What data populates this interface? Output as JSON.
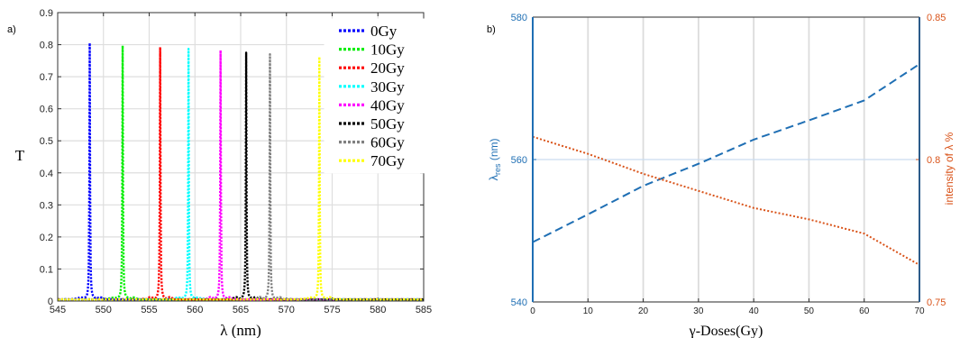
{
  "panels": {
    "a": {
      "label": "a)"
    },
    "b": {
      "label": "b)"
    }
  },
  "chart_data": [
    {
      "type": "line",
      "panel": "a)",
      "title": "",
      "xlabel": "λ (nm)",
      "ylabel": "T",
      "xlim": [
        545,
        585
      ],
      "ylim": [
        0,
        0.9
      ],
      "xticks": [
        "545",
        "550",
        "555",
        "560",
        "565",
        "570",
        "575",
        "580",
        "585"
      ],
      "yticks": [
        "0",
        "0.1",
        "0.2",
        "0.3",
        "0.4",
        "0.5",
        "0.6",
        "0.7",
        "0.8",
        "0.9"
      ],
      "grid": true,
      "legend_position": "top-right",
      "series": [
        {
          "name": "0Gy",
          "peak_x": 548.5,
          "peak_t": 0.805,
          "color": "#0000ff"
        },
        {
          "name": "10Gy",
          "peak_x": 552.1,
          "peak_t": 0.797,
          "color": "#00ee00"
        },
        {
          "name": "20Gy",
          "peak_x": 556.2,
          "peak_t": 0.792,
          "color": "#ff0000"
        },
        {
          "name": "30Gy",
          "peak_x": 559.3,
          "peak_t": 0.787,
          "color": "#00ffff"
        },
        {
          "name": "40Gy",
          "peak_x": 562.8,
          "peak_t": 0.782,
          "color": "#ff00ff"
        },
        {
          "name": "50Gy",
          "peak_x": 565.6,
          "peak_t": 0.775,
          "color": "#000000"
        },
        {
          "name": "60Gy",
          "peak_x": 568.2,
          "peak_t": 0.77,
          "color": "#808080"
        },
        {
          "name": "70Gy",
          "peak_x": 573.6,
          "peak_t": 0.762,
          "color": "#ffff00"
        }
      ]
    },
    {
      "type": "line",
      "panel": "b)",
      "title": "",
      "xlabel": "γ-Doses(Gy)",
      "ylabel_left": "λres (nm)",
      "ylabel_left_main": "λ",
      "ylabel_left_sub": "res",
      "ylabel_left_unit": " (nm)",
      "ylabel_right": "intensity of λ   %",
      "xlim": [
        0,
        70
      ],
      "ylim_left": [
        540,
        580
      ],
      "ylim_right": [
        0.75,
        0.85
      ],
      "xticks": [
        "0",
        "10",
        "20",
        "30",
        "40",
        "50",
        "60",
        "70"
      ],
      "yticks_left": [
        "540",
        "560",
        "580"
      ],
      "yticks_right": [
        "0.75",
        "0.8",
        "0.85"
      ],
      "grid": true,
      "series": [
        {
          "name": "",
          "axis": "left",
          "style": "dashed",
          "color": "#1f6fb4",
          "x": [
            0,
            10,
            20,
            30,
            40,
            50,
            60,
            70
          ],
          "y": [
            548.4,
            552.3,
            556.3,
            559.4,
            562.8,
            565.5,
            568.3,
            573.4
          ]
        },
        {
          "name": "",
          "axis": "right",
          "style": "dotted",
          "color": "#d95319",
          "x": [
            0,
            10,
            20,
            30,
            40,
            50,
            60,
            70
          ],
          "y": [
            0.808,
            0.802,
            0.795,
            0.789,
            0.783,
            0.779,
            0.774,
            0.763
          ]
        }
      ]
    }
  ]
}
